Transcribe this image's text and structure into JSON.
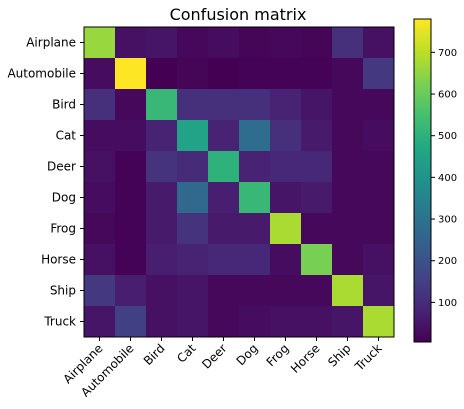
{
  "chart_data": {
    "type": "heatmap",
    "title": "Confusion matrix",
    "xlabel": "",
    "ylabel": "",
    "row_labels": [
      "Airplane",
      "Automobile",
      "Bird",
      "Cat",
      "Deer",
      "Dog",
      "Frog",
      "Horse",
      "Ship",
      "Truck"
    ],
    "col_labels": [
      "Airplane",
      "Automobile",
      "Bird",
      "Cat",
      "Deer",
      "Dog",
      "Frog",
      "Horse",
      "Ship",
      "Truck"
    ],
    "values": [
      [
        660,
        40,
        50,
        20,
        30,
        15,
        20,
        15,
        110,
        40
      ],
      [
        30,
        780,
        5,
        15,
        5,
        10,
        10,
        10,
        20,
        130
      ],
      [
        110,
        20,
        520,
        110,
        110,
        110,
        80,
        50,
        20,
        20
      ],
      [
        30,
        30,
        80,
        450,
        80,
        280,
        110,
        60,
        20,
        30
      ],
      [
        40,
        10,
        120,
        100,
        500,
        80,
        90,
        90,
        20,
        20
      ],
      [
        30,
        10,
        60,
        270,
        70,
        520,
        50,
        60,
        20,
        20
      ],
      [
        20,
        10,
        60,
        120,
        60,
        60,
        680,
        20,
        20,
        20
      ],
      [
        40,
        10,
        70,
        80,
        90,
        90,
        30,
        620,
        20,
        40
      ],
      [
        130,
        70,
        40,
        50,
        20,
        20,
        20,
        20,
        680,
        50
      ],
      [
        50,
        150,
        40,
        50,
        20,
        30,
        40,
        40,
        50,
        680
      ]
    ],
    "colorbar": {
      "min": 5,
      "max": 780,
      "ticks": [
        100,
        200,
        300,
        400,
        500,
        600,
        700
      ],
      "colormap": "viridis"
    },
    "grid": false
  }
}
